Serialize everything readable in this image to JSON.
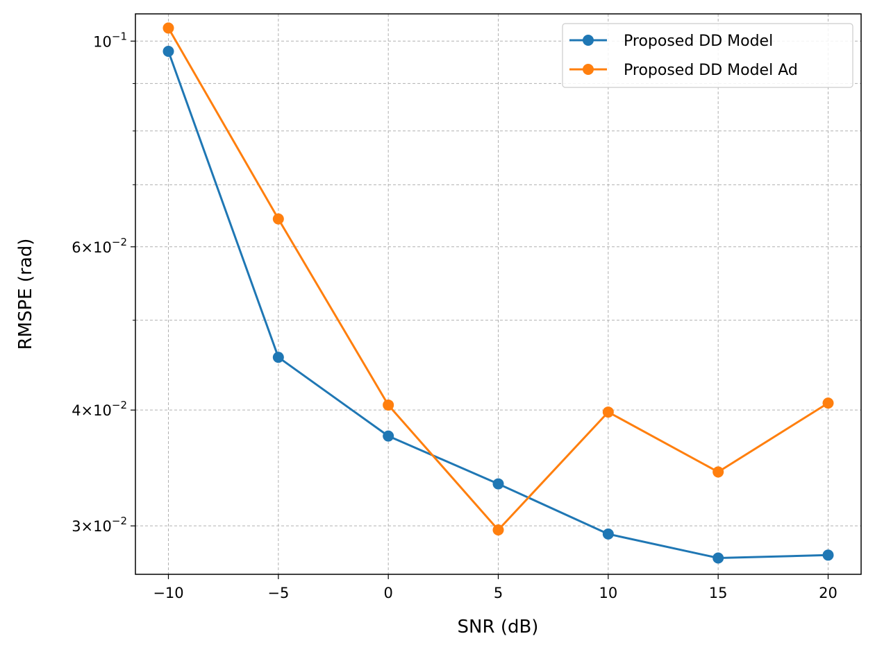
{
  "chart_data": {
    "type": "line",
    "title": "",
    "xlabel": "SNR (dB)",
    "ylabel": "RMSPE (rad)",
    "x": [
      -10,
      -5,
      0,
      5,
      10,
      15,
      20
    ],
    "x_ticks": [
      -10,
      -5,
      0,
      5,
      10,
      15,
      20
    ],
    "x_tick_labels": [
      "−10",
      "−5",
      "0",
      "5",
      "10",
      "15",
      "20"
    ],
    "xlim": [
      -11.5,
      21.5
    ],
    "y_scale": "log",
    "ylim": [
      0.0266,
      0.107
    ],
    "y_major_ticks": [
      {
        "value": 0.1,
        "base": "10",
        "exp": "−1"
      },
      {
        "value": 0.06,
        "base": "6×10",
        "exp": "−2"
      },
      {
        "value": 0.04,
        "base": "4×10",
        "exp": "−2"
      },
      {
        "value": 0.03,
        "base": "3×10",
        "exp": "−2"
      }
    ],
    "y_minor_gridlines": [
      0.09,
      0.08,
      0.07,
      0.05
    ],
    "grid": true,
    "legend_position": "top-right",
    "series": [
      {
        "name": "Proposed DD Model",
        "color": "#1f77b4",
        "values": [
          0.0975,
          0.0456,
          0.0375,
          0.0333,
          0.0294,
          0.0277,
          0.0279
        ]
      },
      {
        "name": "Proposed DD Model Ad",
        "color": "#ff7f0e",
        "values": [
          0.1033,
          0.0643,
          0.0405,
          0.0297,
          0.0398,
          0.0343,
          0.0407
        ]
      }
    ]
  }
}
